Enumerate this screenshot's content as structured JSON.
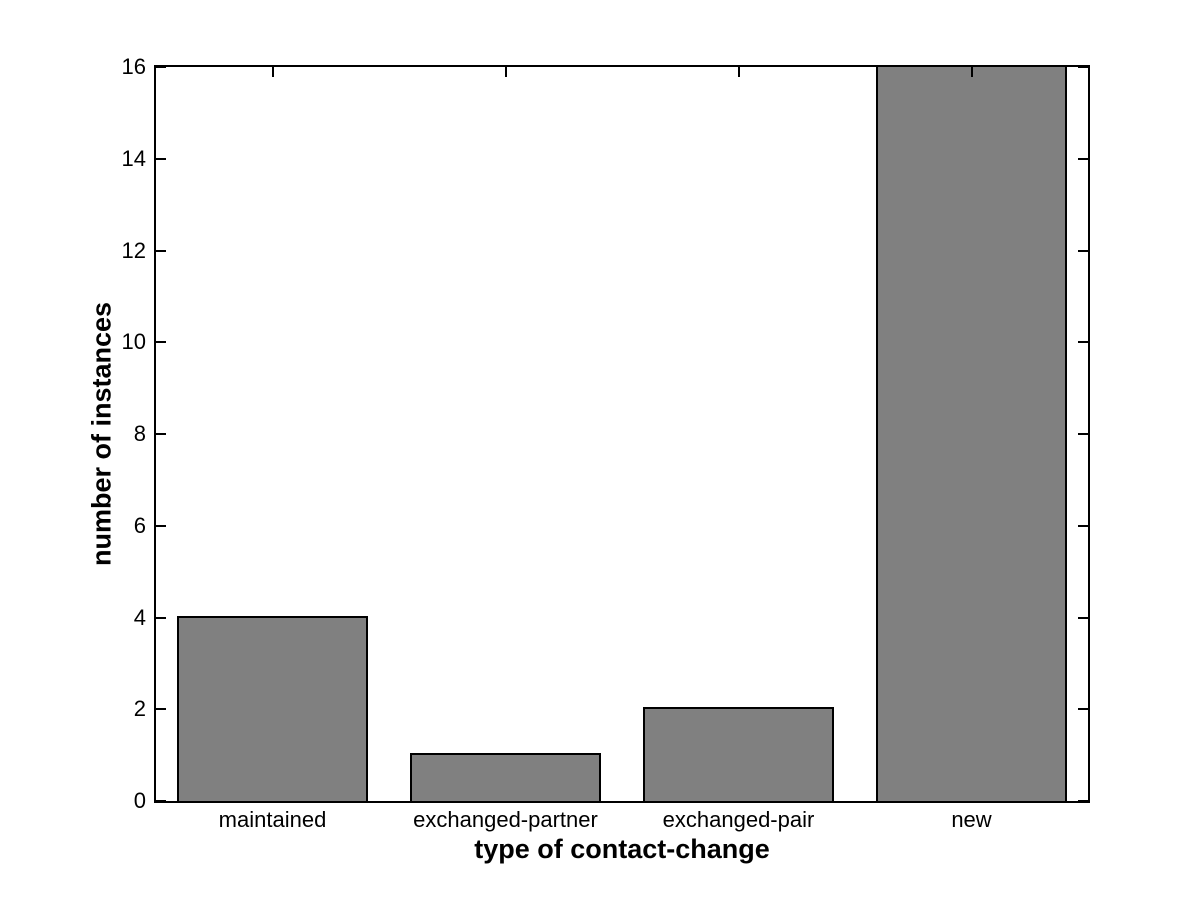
{
  "chart_data": {
    "type": "bar",
    "title": "",
    "xlabel": "type of contact-change",
    "ylabel": "number of instances",
    "categories": [
      "maintained",
      "exchanged-partner",
      "exchanged-pair",
      "new"
    ],
    "values": [
      4,
      1,
      2,
      16
    ],
    "yticks": [
      0,
      2,
      4,
      6,
      8,
      10,
      12,
      14,
      16
    ],
    "ylim": [
      0,
      16
    ],
    "bar_width_fraction": 0.8,
    "grid": false,
    "legend": null,
    "bar_color": "#808080",
    "bar_edge_color": "#000000",
    "axis_color": "#000000",
    "background_color": "#ffffff"
  }
}
